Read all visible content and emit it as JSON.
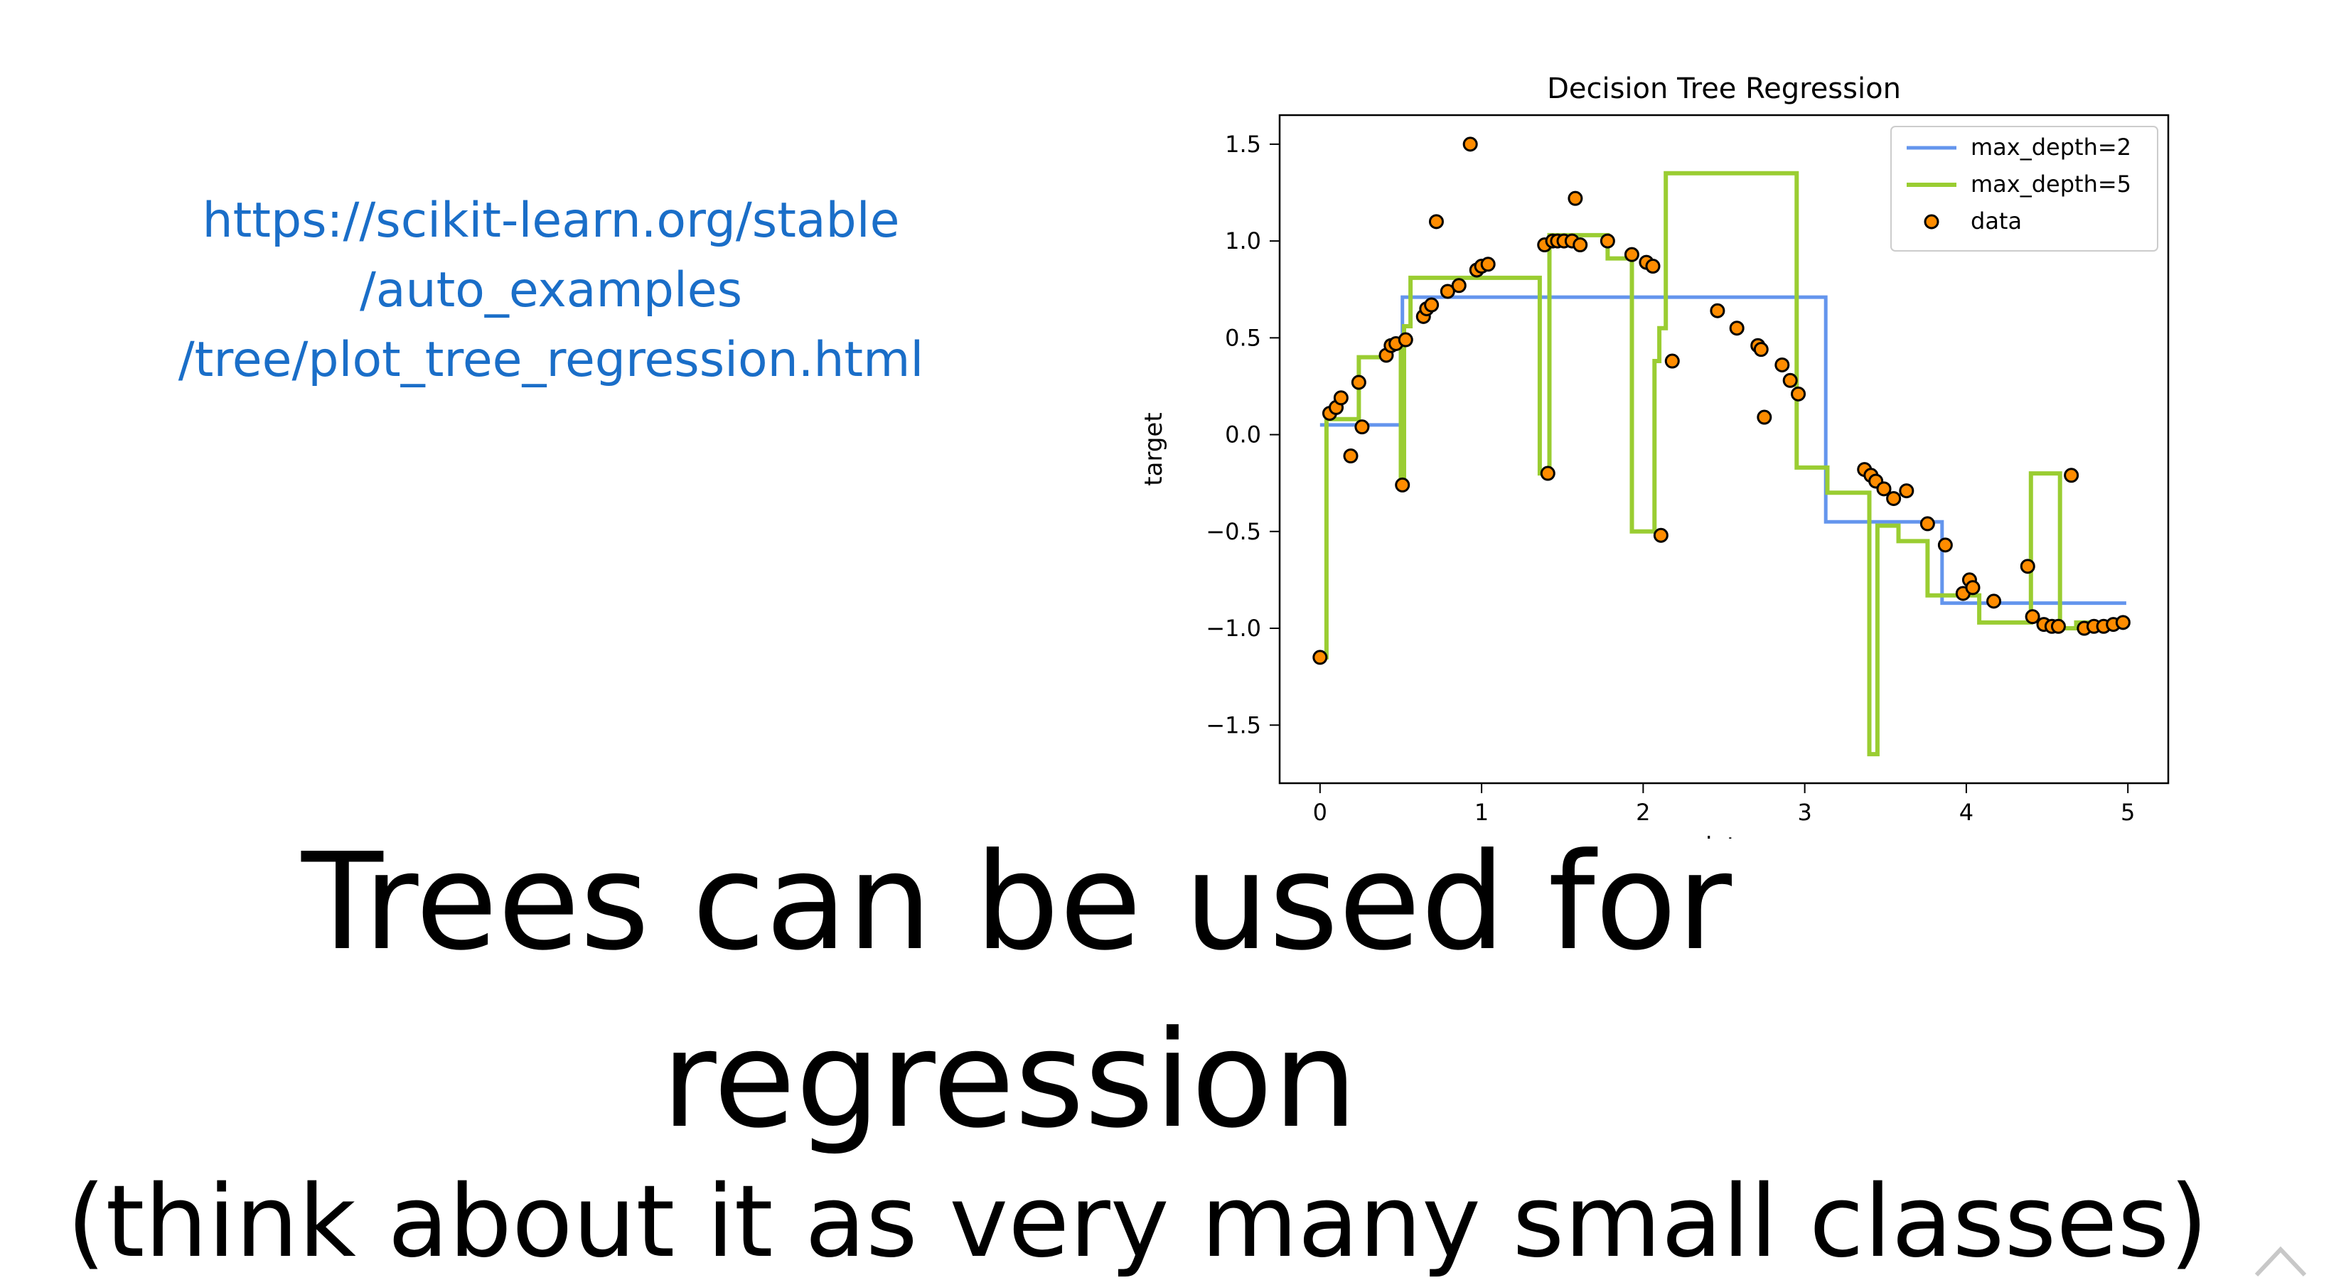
{
  "link": {
    "lines": [
      "https://scikit-learn.org/stable",
      "/auto_examples",
      "/tree/plot_tree_regression.html"
    ]
  },
  "headline": {
    "line1": "Trees can be used for",
    "line2": "regression",
    "line3": "(think about it as very many small classes)"
  },
  "colors": {
    "link": "#1a6ec8",
    "series_depth2": "#6495ed",
    "series_depth5": "#9acd32",
    "data_points": "#ff8c00"
  },
  "icons": {
    "nav": "chevron-up-icon"
  },
  "chart_data": {
    "type": "line",
    "title": "Decision Tree Regression",
    "xlabel": "data",
    "ylabel": "target",
    "xlim": [
      -0.25,
      5.25
    ],
    "ylim": [
      -1.8,
      1.65
    ],
    "xticks": [
      0,
      1,
      2,
      3,
      4,
      5
    ],
    "xtick_labels": [
      "0",
      "1",
      "2",
      "3",
      "4",
      "5"
    ],
    "yticks": [
      1.5,
      1.0,
      0.5,
      0.0,
      -0.5,
      -1.0,
      -1.5
    ],
    "ytick_labels": [
      "1.5",
      "1.0",
      "0.5",
      "0.0",
      "−0.5",
      "−1.0",
      "−1.5"
    ],
    "grid": false,
    "legend_position": "top-right",
    "legend": [
      "max_depth=2",
      "max_depth=5",
      "data"
    ],
    "series": [
      {
        "name": "max_depth=2",
        "kind": "step",
        "x": [
          0.0,
          0.51,
          0.51,
          3.13,
          3.13,
          3.85,
          3.85,
          4.99
        ],
        "y": [
          0.05,
          0.05,
          0.71,
          0.71,
          -0.45,
          -0.45,
          -0.87,
          -0.87
        ]
      },
      {
        "name": "max_depth=5",
        "kind": "step",
        "x": [
          0.0,
          0.04,
          0.04,
          0.24,
          0.24,
          0.42,
          0.42,
          0.5,
          0.5,
          0.52,
          0.52,
          0.56,
          0.56,
          1.36,
          1.36,
          1.42,
          1.42,
          1.78,
          1.78,
          1.93,
          1.93,
          2.07,
          2.07,
          2.1,
          2.1,
          2.14,
          2.14,
          2.95,
          2.95,
          3.14,
          3.14,
          3.4,
          3.4,
          3.45,
          3.45,
          3.58,
          3.58,
          3.76,
          3.76,
          4.08,
          4.08,
          4.4,
          4.4,
          4.58,
          4.58,
          4.68,
          4.68,
          4.99
        ],
        "y": [
          -1.15,
          -1.15,
          0.08,
          0.08,
          0.4,
          0.4,
          0.48,
          0.48,
          -0.27,
          -0.27,
          0.56,
          0.56,
          0.81,
          0.81,
          -0.2,
          -0.2,
          1.03,
          1.03,
          0.91,
          0.91,
          -0.5,
          -0.5,
          0.38,
          0.38,
          0.55,
          0.55,
          1.35,
          1.35,
          -0.17,
          -0.17,
          -0.3,
          -0.3,
          -1.65,
          -1.65,
          -0.47,
          -0.47,
          -0.55,
          -0.55,
          -0.83,
          -0.83,
          -0.97,
          -0.97,
          -0.2,
          -0.2,
          -1.0,
          -1.0,
          -0.97,
          -0.97
        ]
      }
    ],
    "scatter": {
      "name": "data",
      "x": [
        0.0,
        0.06,
        0.1,
        0.13,
        0.19,
        0.24,
        0.26,
        0.41,
        0.44,
        0.47,
        0.51,
        0.53,
        0.64,
        0.66,
        0.69,
        0.72,
        0.79,
        0.86,
        0.93,
        0.97,
        1.0,
        1.04,
        1.39,
        1.41,
        1.44,
        1.47,
        1.51,
        1.56,
        1.58,
        1.61,
        1.78,
        1.93,
        2.02,
        2.06,
        2.11,
        2.18,
        2.46,
        2.58,
        2.71,
        2.73,
        2.75,
        2.86,
        2.91,
        2.96,
        3.37,
        3.41,
        3.44,
        3.49,
        3.55,
        3.63,
        3.76,
        3.87,
        3.98,
        4.02,
        4.04,
        4.17,
        4.38,
        4.41,
        4.48,
        4.53,
        4.57,
        4.65,
        4.73,
        4.79,
        4.85,
        4.91,
        4.97
      ],
      "y": [
        -1.15,
        0.11,
        0.14,
        0.19,
        -0.11,
        0.27,
        0.04,
        0.41,
        0.46,
        0.47,
        -0.26,
        0.49,
        0.61,
        0.65,
        0.67,
        1.1,
        0.74,
        0.77,
        1.5,
        0.85,
        0.87,
        0.88,
        0.98,
        -0.2,
        1.0,
        1.0,
        1.0,
        1.0,
        1.22,
        0.98,
        1.0,
        0.93,
        0.89,
        0.87,
        -0.52,
        0.38,
        0.64,
        0.55,
        0.46,
        0.44,
        0.09,
        0.36,
        0.28,
        0.21,
        -0.18,
        -0.21,
        -0.24,
        -0.28,
        -0.33,
        -0.29,
        -0.46,
        -0.57,
        -0.82,
        -0.75,
        -0.79,
        -0.86,
        -0.68,
        -0.94,
        -0.98,
        -0.99,
        -0.99,
        -0.21,
        -1.0,
        -0.99,
        -0.99,
        -0.98,
        -0.97
      ]
    }
  }
}
